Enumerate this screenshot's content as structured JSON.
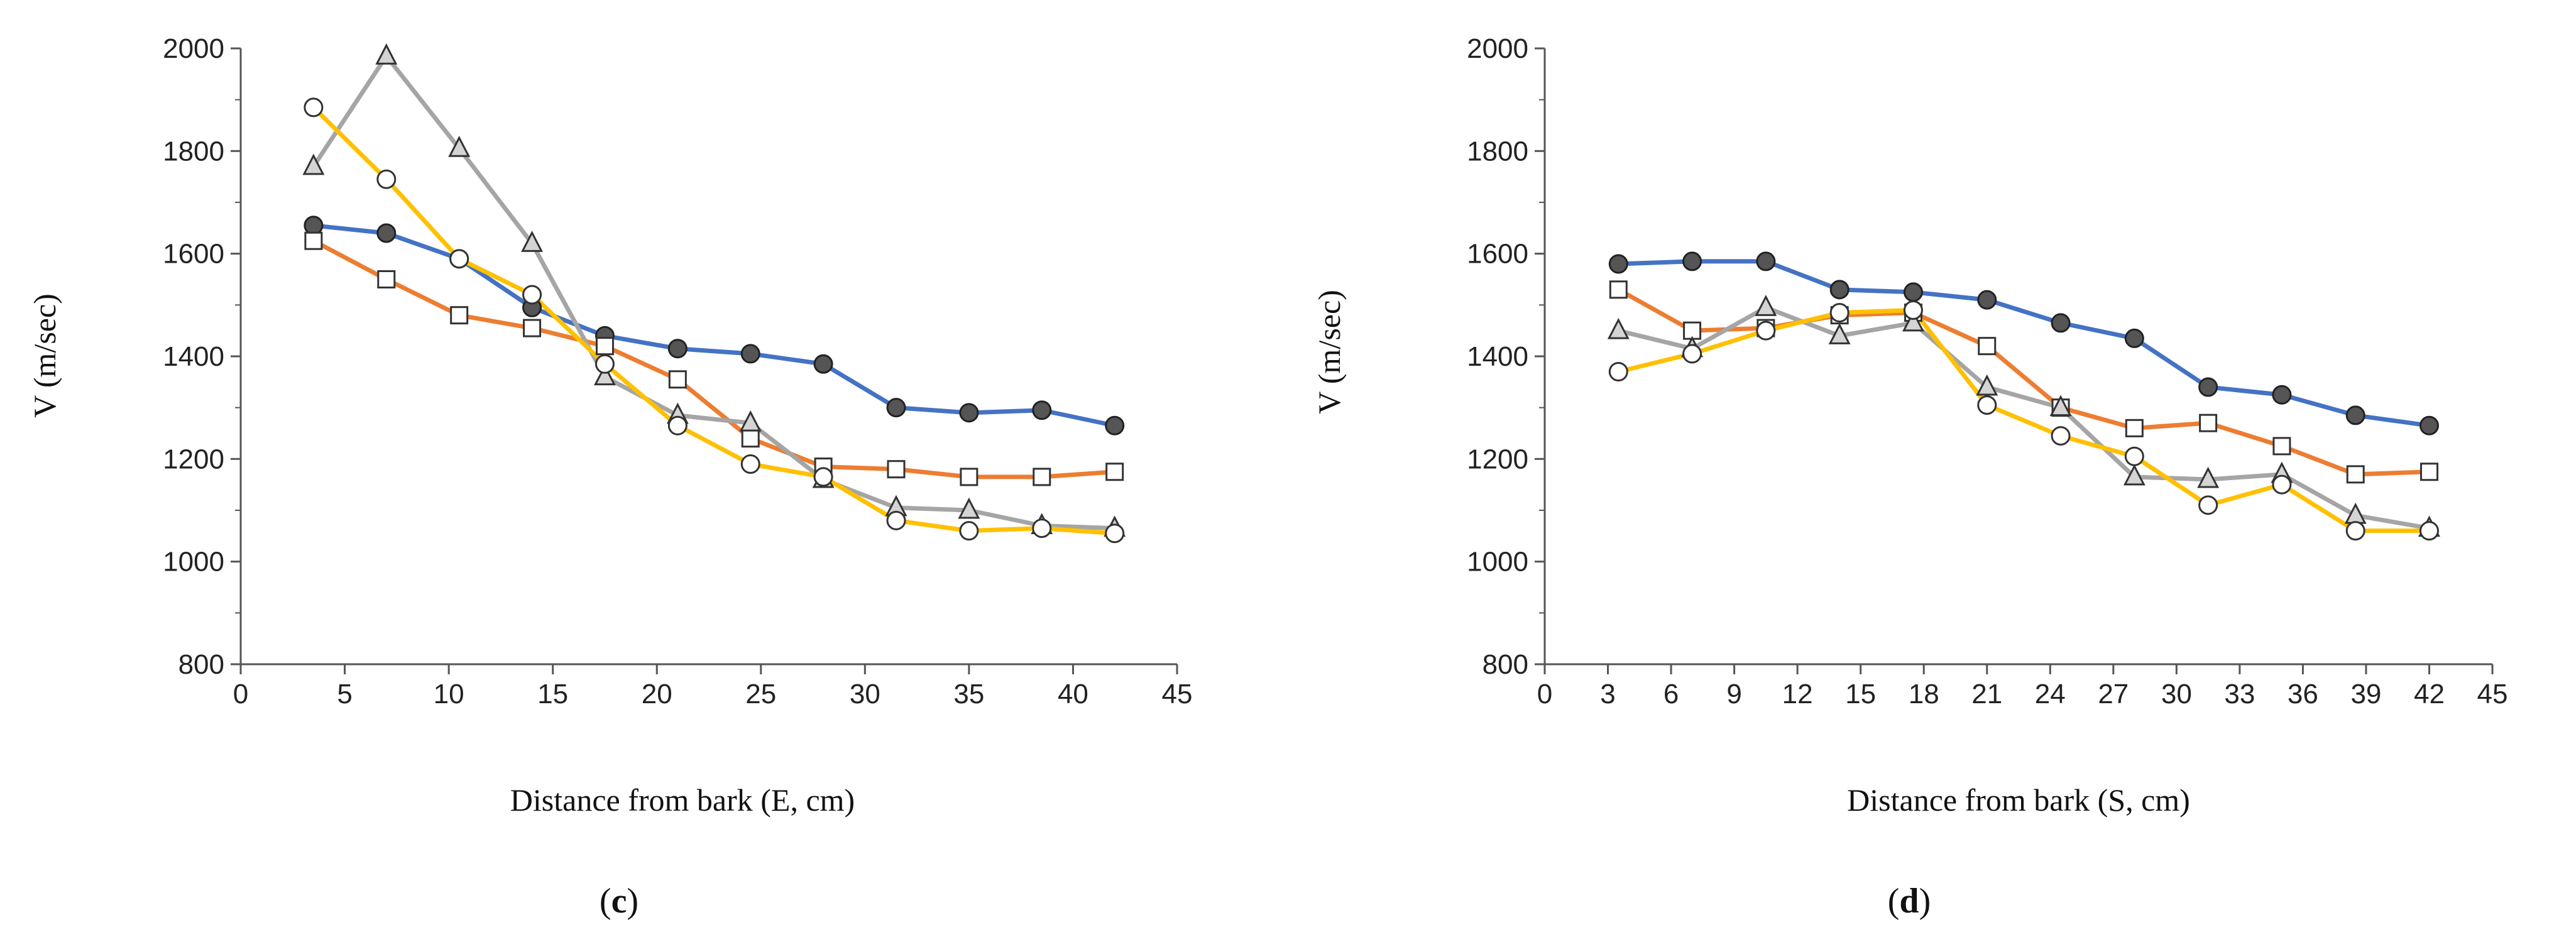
{
  "chart_data": [
    {
      "type": "line",
      "panel_label": "c",
      "xlabel": "Distance from bark (E, cm)",
      "ylabel": "V (m/sec)",
      "xlim": [
        0,
        45
      ],
      "ylim": [
        800,
        2000
      ],
      "xticks": [
        0,
        5,
        10,
        15,
        20,
        25,
        30,
        35,
        40,
        45
      ],
      "yticks": [
        800,
        1000,
        1200,
        1400,
        1600,
        1800,
        2000
      ],
      "grid": false,
      "x": [
        3.5,
        7,
        10.5,
        14,
        17.5,
        21,
        24.5,
        28,
        31.5,
        35,
        38.5,
        42
      ],
      "series": [
        {
          "name": "filled-circle",
          "color": "#4472C4",
          "marker": "circle-filled",
          "values": [
            1655,
            1640,
            1590,
            1495,
            1440,
            1415,
            1405,
            1385,
            1300,
            1290,
            1295,
            1265
          ]
        },
        {
          "name": "square",
          "color": "#ED7D31",
          "marker": "square",
          "values": [
            1625,
            1550,
            1480,
            1455,
            1420,
            1355,
            1240,
            1185,
            1180,
            1165,
            1165,
            1175
          ]
        },
        {
          "name": "triangle",
          "color": "#A5A5A5",
          "marker": "triangle",
          "values": [
            1770,
            1985,
            1805,
            1620,
            1360,
            1285,
            1270,
            1160,
            1105,
            1100,
            1070,
            1065
          ]
        },
        {
          "name": "open-circle",
          "color": "#FFC000",
          "marker": "circle-open",
          "values": [
            1885,
            1745,
            1590,
            1520,
            1385,
            1265,
            1190,
            1165,
            1080,
            1060,
            1065,
            1055
          ]
        }
      ]
    },
    {
      "type": "line",
      "panel_label": "d",
      "xlabel": "Distance from bark (S, cm)",
      "ylabel": "V (m/sec)",
      "xlim": [
        0,
        45
      ],
      "ylim": [
        800,
        2000
      ],
      "xticks": [
        0,
        3,
        6,
        9,
        12,
        15,
        18,
        21,
        24,
        27,
        30,
        33,
        36,
        39,
        42,
        45
      ],
      "yticks": [
        800,
        1000,
        1200,
        1400,
        1600,
        1800,
        2000
      ],
      "grid": false,
      "x": [
        3.5,
        7,
        10.5,
        14,
        17.5,
        21,
        24.5,
        28,
        31.5,
        35,
        38.5,
        42
      ],
      "series": [
        {
          "name": "filled-circle",
          "color": "#4472C4",
          "marker": "circle-filled",
          "values": [
            1580,
            1585,
            1585,
            1530,
            1525,
            1510,
            1465,
            1435,
            1340,
            1325,
            1285,
            1265
          ]
        },
        {
          "name": "square",
          "color": "#ED7D31",
          "marker": "square",
          "values": [
            1530,
            1450,
            1455,
            1480,
            1485,
            1420,
            1300,
            1260,
            1270,
            1225,
            1170,
            1175
          ]
        },
        {
          "name": "triangle",
          "color": "#A5A5A5",
          "marker": "triangle",
          "values": [
            1450,
            1415,
            1495,
            1440,
            1465,
            1340,
            1300,
            1165,
            1160,
            1170,
            1090,
            1065
          ]
        },
        {
          "name": "open-circle",
          "color": "#FFC000",
          "marker": "circle-open",
          "values": [
            1370,
            1405,
            1450,
            1485,
            1490,
            1305,
            1245,
            1205,
            1110,
            1150,
            1060,
            1060
          ]
        }
      ]
    }
  ]
}
